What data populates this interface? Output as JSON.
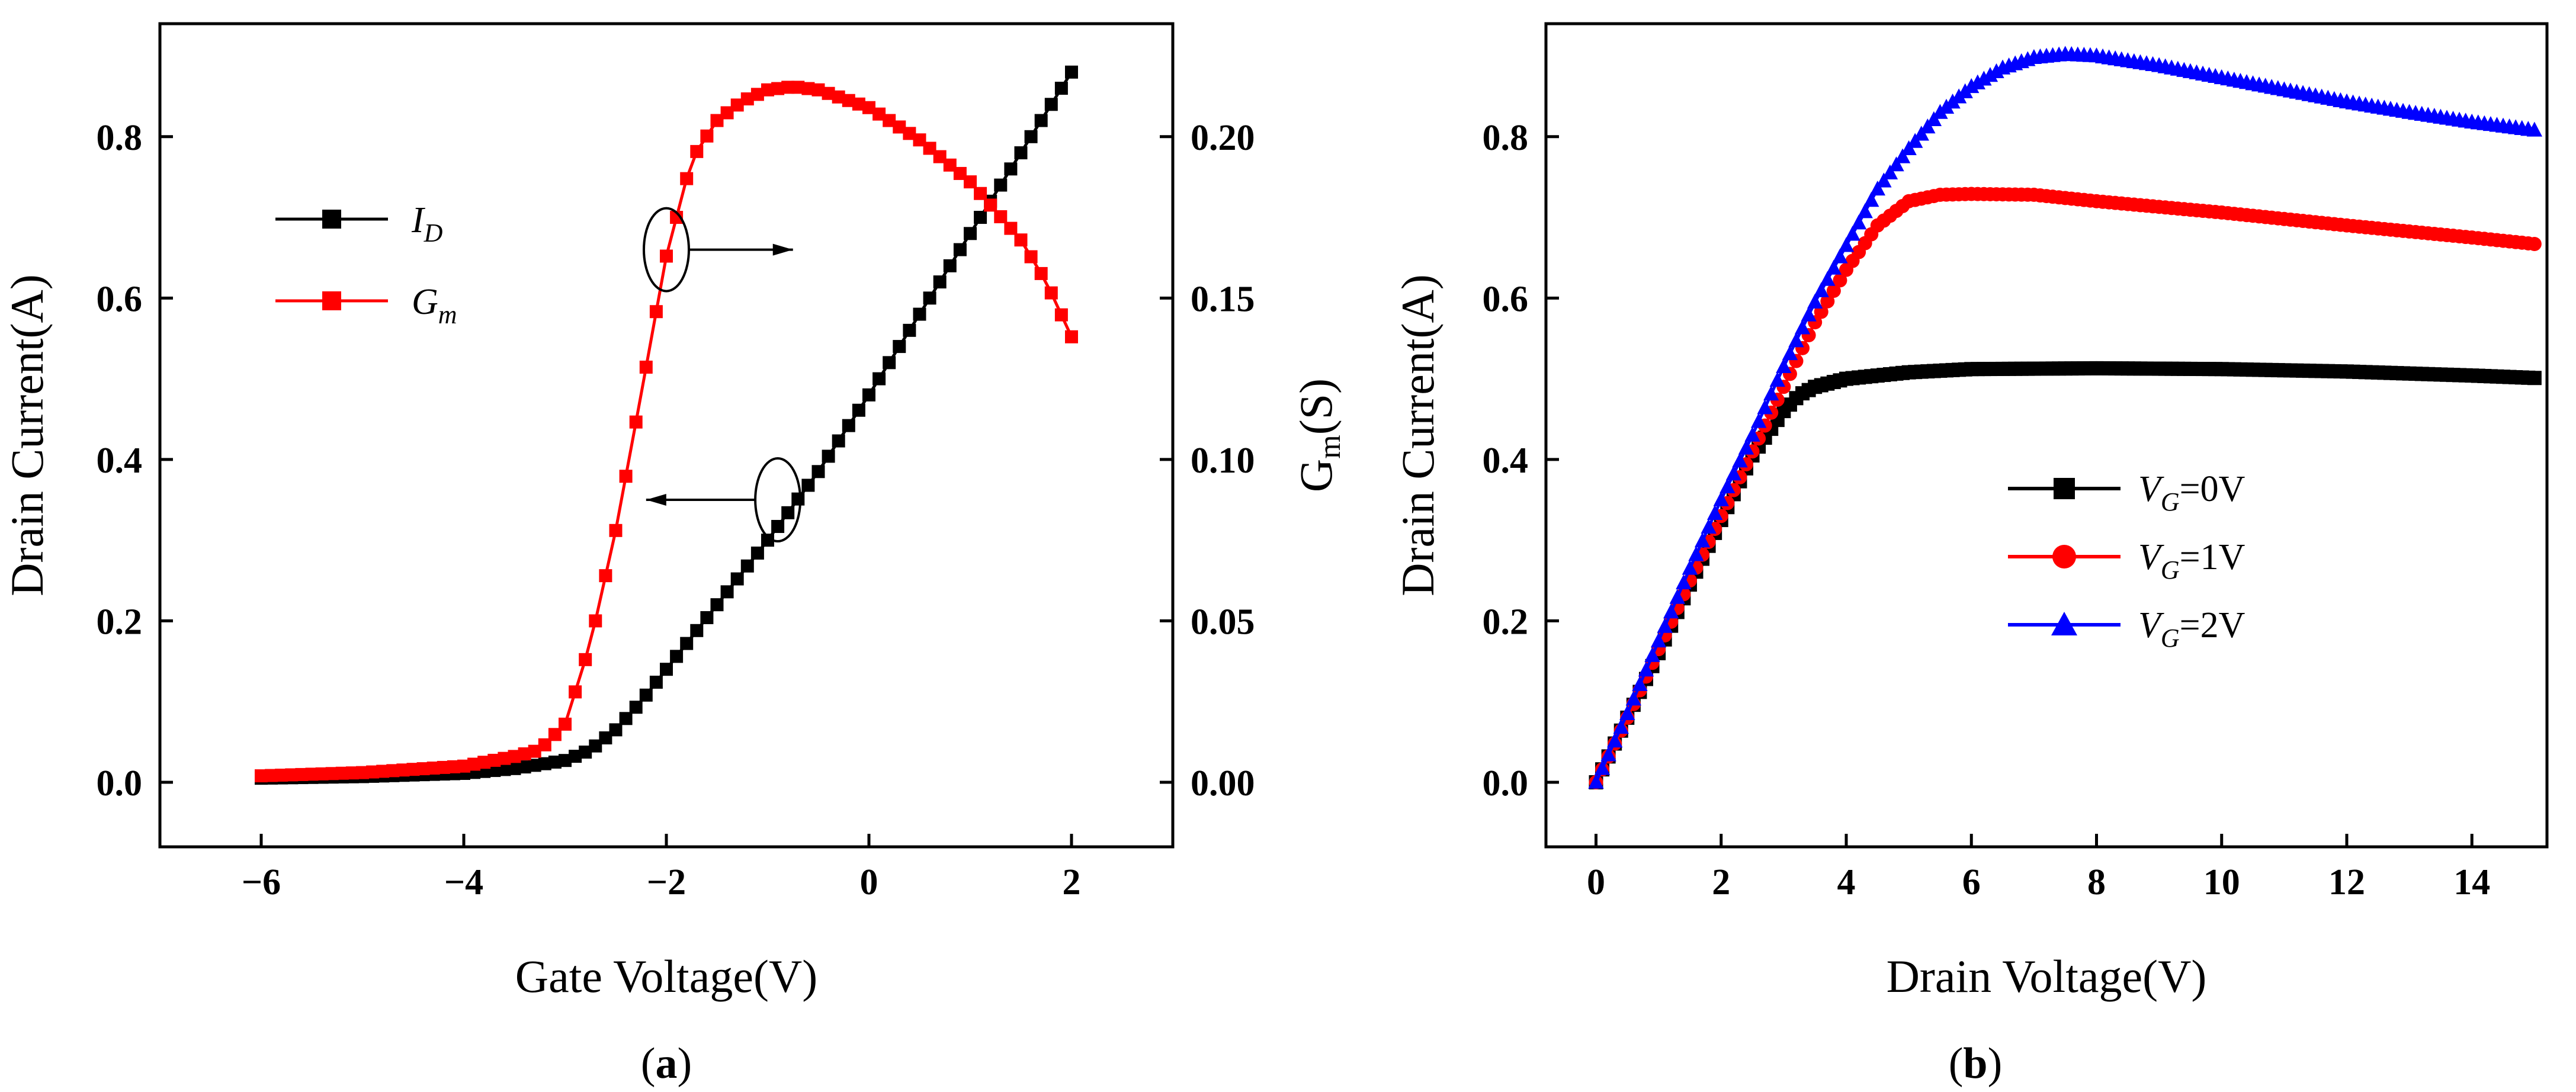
{
  "chart_data": [
    {
      "id": "a",
      "type": "line",
      "caption_letter": "a",
      "xlabel": "Gate Voltage(V)",
      "ylabel": "Drain Current(A)",
      "y2label_main": "G",
      "y2label_sub": "m",
      "y2label_tail": "(S)",
      "xlim": [
        -7,
        3
      ],
      "ylim": [
        -0.08,
        0.94
      ],
      "y2lim": [
        -0.02,
        0.235
      ],
      "xticks": [
        -6,
        -4,
        -2,
        0,
        2
      ],
      "xtick_labels": [
        "−6",
        "−4",
        "−2",
        "0",
        "2"
      ],
      "yticks": [
        0.0,
        0.2,
        0.4,
        0.6,
        0.8
      ],
      "ytick_labels": [
        "0.0",
        "0.2",
        "0.4",
        "0.6",
        "0.8"
      ],
      "y2ticks": [
        0.0,
        0.05,
        0.1,
        0.15,
        0.2
      ],
      "y2tick_labels": [
        "0.00",
        "0.05",
        "0.10",
        "0.15",
        "0.20"
      ],
      "legend_position": "upper-left",
      "series": [
        {
          "name": "I",
          "name_sub": "D",
          "axis": "left",
          "color": "#000000",
          "marker": "square",
          "x": [
            -6.0,
            -5.0,
            -4.0,
            -3.5,
            -3.0,
            -2.75,
            -2.5,
            -2.25,
            -2.0,
            -1.5,
            -1.0,
            -0.5,
            0.0,
            0.5,
            1.0,
            1.5,
            2.0
          ],
          "values": [
            0.005,
            0.007,
            0.011,
            0.017,
            0.027,
            0.04,
            0.065,
            0.1,
            0.14,
            0.22,
            0.3,
            0.385,
            0.48,
            0.58,
            0.68,
            0.78,
            0.88
          ]
        },
        {
          "name": "G",
          "name_sub": "m",
          "axis": "right",
          "color": "#ff0000",
          "marker": "square",
          "x": [
            -6.0,
            -5.0,
            -4.0,
            -3.5,
            -3.25,
            -3.0,
            -2.75,
            -2.5,
            -2.25,
            -2.0,
            -1.75,
            -1.5,
            -1.25,
            -1.0,
            -0.75,
            -0.5,
            0.0,
            0.5,
            1.0,
            1.5,
            1.75,
            2.0
          ],
          "values": [
            0.002,
            0.003,
            0.005,
            0.008,
            0.01,
            0.018,
            0.043,
            0.078,
            0.12,
            0.163,
            0.193,
            0.205,
            0.211,
            0.2145,
            0.2155,
            0.2145,
            0.209,
            0.199,
            0.186,
            0.168,
            0.155,
            0.138
          ]
        }
      ],
      "annotations": [
        {
          "type": "ellipse-arrow",
          "x": -2.0,
          "y": 0.66,
          "direction": "right",
          "to_x": -0.75
        },
        {
          "type": "ellipse-arrow",
          "x": -0.9,
          "y": 0.35,
          "direction": "left",
          "to_x": -2.2
        }
      ]
    },
    {
      "id": "b",
      "type": "line",
      "caption_letter": "b",
      "xlabel": "Drain Voltage(V)",
      "ylabel": "Drain Current(A)",
      "xlim": [
        -0.8,
        15.2
      ],
      "ylim": [
        -0.08,
        0.94
      ],
      "xticks": [
        0,
        2,
        4,
        6,
        8,
        10,
        12,
        14
      ],
      "xtick_labels": [
        "0",
        "2",
        "4",
        "6",
        "8",
        "10",
        "12",
        "14"
      ],
      "yticks": [
        0.0,
        0.2,
        0.4,
        0.6,
        0.8
      ],
      "ytick_labels": [
        "0.0",
        "0.2",
        "0.4",
        "0.6",
        "0.8"
      ],
      "legend_position": "center-right",
      "series": [
        {
          "name": "V",
          "name_sub": "G",
          "name_tail": "=0V",
          "color": "#000000",
          "marker": "square",
          "x": [
            0,
            0.5,
            1.0,
            1.5,
            2.0,
            2.5,
            3.0,
            3.25,
            3.5,
            4.0,
            5.0,
            6.0,
            8.0,
            10.0,
            12.0,
            14.0,
            15.0
          ],
          "values": [
            0.0,
            0.08,
            0.16,
            0.245,
            0.325,
            0.405,
            0.46,
            0.48,
            0.49,
            0.5,
            0.508,
            0.512,
            0.513,
            0.512,
            0.509,
            0.504,
            0.501
          ]
        },
        {
          "name": "V",
          "name_sub": "G",
          "name_tail": "=1V",
          "color": "#ff0000",
          "marker": "circle",
          "x": [
            0,
            0.5,
            1.0,
            1.5,
            2.0,
            2.5,
            3.0,
            3.5,
            4.0,
            4.5,
            5.0,
            5.5,
            6.0,
            7.0,
            8.0,
            10.0,
            12.0,
            14.0,
            15.0
          ],
          "values": [
            0.0,
            0.08,
            0.165,
            0.25,
            0.33,
            0.41,
            0.49,
            0.57,
            0.635,
            0.69,
            0.72,
            0.728,
            0.729,
            0.728,
            0.72,
            0.706,
            0.69,
            0.675,
            0.667
          ]
        },
        {
          "name": "V",
          "name_sub": "G",
          "name_tail": "=2V",
          "color": "#0000ff",
          "marker": "triangle",
          "x": [
            0,
            0.5,
            1.0,
            1.5,
            2.0,
            2.5,
            3.0,
            3.5,
            4.0,
            4.5,
            5.0,
            5.5,
            6.0,
            6.5,
            7.0,
            7.5,
            8.0,
            9.0,
            10.0,
            11.0,
            12.0,
            13.0,
            14.0,
            15.0
          ],
          "values": [
            0.0,
            0.085,
            0.175,
            0.265,
            0.35,
            0.43,
            0.515,
            0.595,
            0.665,
            0.735,
            0.785,
            0.83,
            0.862,
            0.885,
            0.898,
            0.902,
            0.9,
            0.888,
            0.873,
            0.858,
            0.843,
            0.83,
            0.818,
            0.808
          ]
        }
      ]
    }
  ]
}
